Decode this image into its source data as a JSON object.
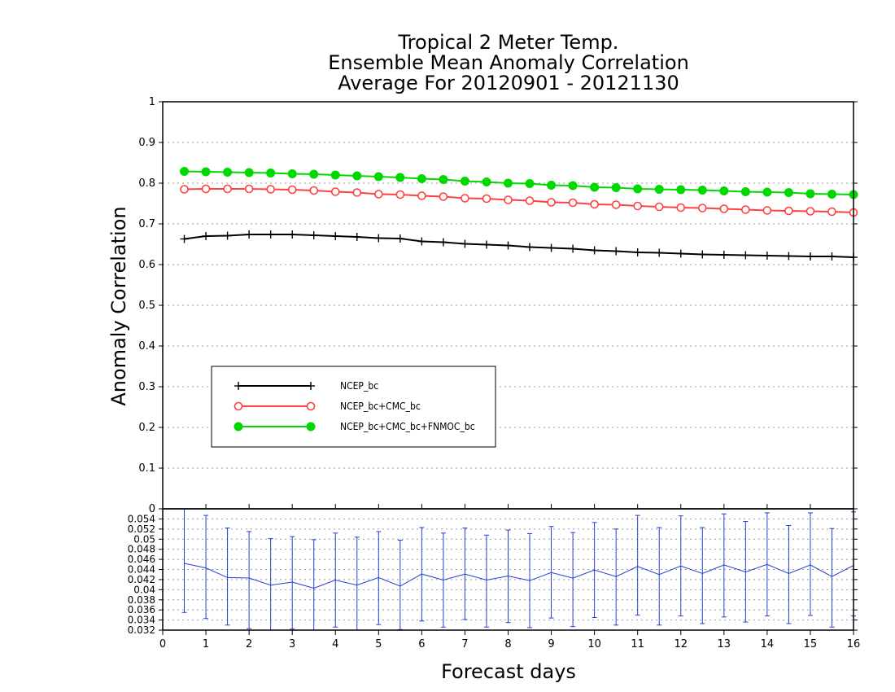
{
  "chart_data": [
    {
      "type": "line",
      "title": [
        "Tropical 2 Meter Temp.",
        "Ensemble Mean Anomaly Correlation",
        "Average For 20120901 - 20121130"
      ],
      "xlabel": "Forecast days",
      "ylabel": "Anomaly Correlation",
      "xlim": [
        0,
        16
      ],
      "ylim": [
        0,
        1
      ],
      "x_ticks": [
        "0",
        "1",
        "2",
        "3",
        "4",
        "5",
        "6",
        "7",
        "8",
        "9",
        "10",
        "11",
        "12",
        "13",
        "14",
        "15",
        "16"
      ],
      "y_ticks": [
        "0",
        "0.1",
        "0.2",
        "0.3",
        "0.4",
        "0.5",
        "0.6",
        "0.7",
        "0.8",
        "0.9",
        "1"
      ],
      "grid": true,
      "legend_position": "left-lower",
      "x": [
        0.5,
        1,
        1.5,
        2,
        2.5,
        3,
        3.5,
        4,
        4.5,
        5,
        5.5,
        6,
        6.5,
        7,
        7.5,
        8,
        8.5,
        9,
        9.5,
        10,
        10.5,
        11,
        11.5,
        12,
        12.5,
        13,
        13.5,
        14,
        14.5,
        15,
        15.5,
        16
      ],
      "series": [
        {
          "name": "NCEP_bc",
          "color": "#000000",
          "marker": "plus",
          "values": [
            0.663,
            0.67,
            0.671,
            0.674,
            0.674,
            0.674,
            0.672,
            0.67,
            0.668,
            0.665,
            0.664,
            0.657,
            0.655,
            0.651,
            0.649,
            0.647,
            0.643,
            0.641,
            0.639,
            0.635,
            0.633,
            0.63,
            0.629,
            0.627,
            0.625,
            0.624,
            0.623,
            0.622,
            0.621,
            0.62,
            0.62,
            0.618
          ]
        },
        {
          "name": "NCEP_bc+CMC_bc",
          "color": "#ff4040",
          "marker": "open-circle",
          "values": [
            0.785,
            0.786,
            0.786,
            0.786,
            0.785,
            0.784,
            0.782,
            0.779,
            0.777,
            0.773,
            0.772,
            0.769,
            0.767,
            0.763,
            0.762,
            0.759,
            0.757,
            0.753,
            0.752,
            0.748,
            0.747,
            0.744,
            0.742,
            0.74,
            0.739,
            0.737,
            0.735,
            0.733,
            0.732,
            0.731,
            0.73,
            0.728
          ]
        },
        {
          "name": "NCEP_bc+CMC_bc+FNMOC_bc",
          "color": "#00d800",
          "marker": "filled-circle",
          "values": [
            0.829,
            0.828,
            0.827,
            0.826,
            0.825,
            0.823,
            0.822,
            0.82,
            0.818,
            0.816,
            0.814,
            0.811,
            0.809,
            0.805,
            0.803,
            0.8,
            0.799,
            0.795,
            0.794,
            0.79,
            0.789,
            0.786,
            0.785,
            0.784,
            0.783,
            0.781,
            0.779,
            0.778,
            0.777,
            0.774,
            0.773,
            0.772
          ]
        }
      ]
    },
    {
      "type": "line",
      "xlim": [
        0,
        16
      ],
      "ylim": [
        0.032,
        0.056
      ],
      "y_ticks": [
        "0.032",
        "0.034",
        "0.036",
        "0.038",
        "0.04",
        "0.042",
        "0.044",
        "0.046",
        "0.048",
        "0.05",
        "0.052",
        "0.054"
      ],
      "grid": true,
      "color": "#2040d0",
      "x": [
        0.5,
        1,
        1.5,
        2,
        2.5,
        3,
        3.5,
        4,
        4.5,
        5,
        5.5,
        6,
        6.5,
        7,
        7.5,
        8,
        8.5,
        9,
        9.5,
        10,
        10.5,
        11,
        11.5,
        12,
        12.5,
        13,
        13.5,
        14,
        14.5,
        15,
        15.5,
        16
      ],
      "values": [
        0.0452,
        0.0443,
        0.0424,
        0.0423,
        0.0409,
        0.0415,
        0.0403,
        0.0419,
        0.0409,
        0.0424,
        0.0407,
        0.0431,
        0.0419,
        0.0431,
        0.0419,
        0.0427,
        0.0418,
        0.0434,
        0.0423,
        0.0439,
        0.0426,
        0.0446,
        0.043,
        0.0447,
        0.0432,
        0.0449,
        0.0435,
        0.045,
        0.0432,
        0.0449,
        0.0426,
        0.0448
      ],
      "error_low": [
        0.0355,
        0.0343,
        0.033,
        0.0323,
        0.0318,
        0.0322,
        0.0319,
        0.0326,
        0.032,
        0.0331,
        0.0321,
        0.0338,
        0.0326,
        0.0341,
        0.0326,
        0.0335,
        0.0325,
        0.0344,
        0.0327,
        0.0345,
        0.033,
        0.035,
        0.033,
        0.0348,
        0.0333,
        0.0346,
        0.0336,
        0.0348,
        0.0333,
        0.0349,
        0.0326,
        0.0348
      ],
      "error_high": [
        0.056,
        0.0547,
        0.0522,
        0.0515,
        0.0501,
        0.0505,
        0.0499,
        0.0512,
        0.0504,
        0.0515,
        0.0498,
        0.0523,
        0.0512,
        0.0522,
        0.0508,
        0.0518,
        0.0511,
        0.0525,
        0.0513,
        0.0533,
        0.052,
        0.0547,
        0.0523,
        0.0546,
        0.0523,
        0.055,
        0.0535,
        0.0552,
        0.0527,
        0.0552,
        0.0521,
        0.0554
      ]
    }
  ]
}
